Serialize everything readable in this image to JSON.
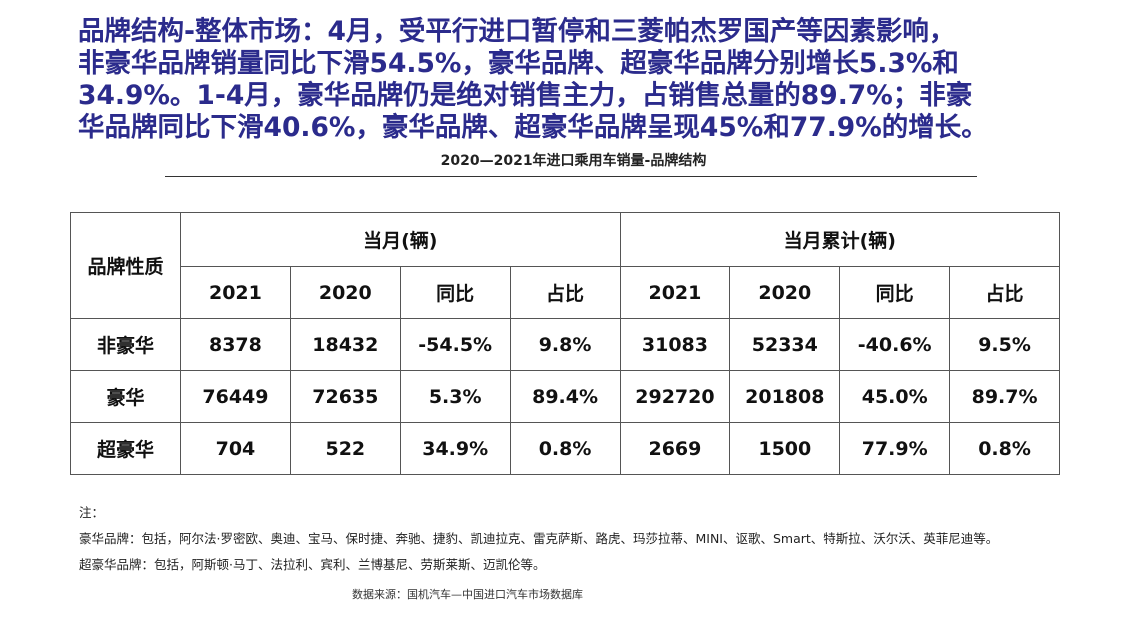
{
  "headline": {
    "line1": "品牌结构-整体市场：4月，受平行进口暂停和三菱帕杰罗国产等因素影响，",
    "line2": "非豪华品牌销量同比下滑54.5%，豪华品牌、超豪华品牌分别增长5.3%和",
    "line3": "34.9%。1-4月，豪华品牌仍是绝对销售主力，占销售总量的89.7%；非豪",
    "line4": "华品牌同比下滑40.6%，豪华品牌、超豪华品牌呈现45%和77.9%的增长。"
  },
  "subtitle": "2020—2021年进口乘用车销量-品牌结构",
  "table": {
    "row_header": "品牌性质",
    "group_month": "当月(辆)",
    "group_ytd": "当月累计(辆)",
    "subheaders": [
      "2021",
      "2020",
      "同比",
      "占比",
      "2021",
      "2020",
      "同比",
      "占比"
    ],
    "rows": [
      {
        "label": "非豪华",
        "cells": [
          "8378",
          "18432",
          "-54.5%",
          "9.8%",
          "31083",
          "52334",
          "-40.6%",
          "9.5%"
        ]
      },
      {
        "label": "豪华",
        "cells": [
          "76449",
          "72635",
          "5.3%",
          "89.4%",
          "292720",
          "201808",
          "45.0%",
          "89.7%"
        ]
      },
      {
        "label": "超豪华",
        "cells": [
          "704",
          "522",
          "34.9%",
          "0.8%",
          "2669",
          "1500",
          "77.9%",
          "0.8%"
        ]
      }
    ]
  },
  "notes": {
    "heading": "注：",
    "luxury": "豪华品牌：包括，阿尔法·罗密欧、奥迪、宝马、保时捷、奔驰、捷豹、凯迪拉克、雷克萨斯、路虎、玛莎拉蒂、MINI、讴歌、Smart、特斯拉、沃尔沃、英菲尼迪等。",
    "super_luxury": "超豪华品牌：包括，阿斯顿·马丁、法拉利、宾利、兰博基尼、劳斯莱斯、迈凯伦等。"
  },
  "source": "数据来源：国机汽车—中国进口汽车市场数据库",
  "colors": {
    "headline": "#2b2b8c",
    "border": "#555555"
  }
}
